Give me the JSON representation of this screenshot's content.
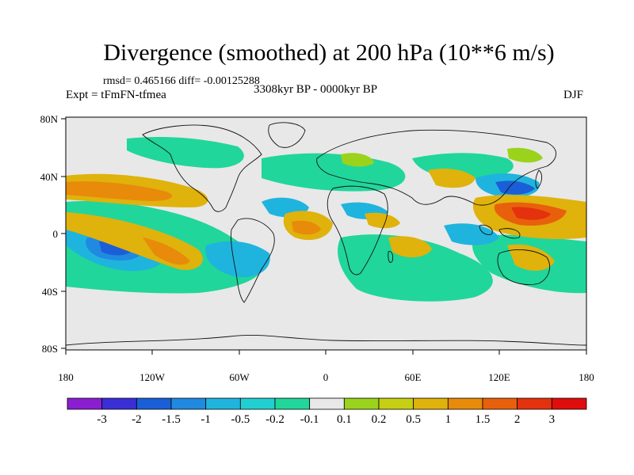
{
  "title": "Divergence (smoothed) at 200 hPa (10**6 m/s)",
  "stats": "rmsd= 0.465166 diff= -0.00125288",
  "experiment": "Expt = tFmFN-tfmea",
  "period": "3308kyr BP - 0000kyr BP",
  "season": "DJF",
  "lat_labels": [
    "80N",
    "40N",
    "0",
    "40S",
    "80S"
  ],
  "lon_labels": [
    "180",
    "120W",
    "60W",
    "0",
    "60E",
    "120E",
    "180"
  ],
  "colorbar": {
    "levels": [
      "-3",
      "-2",
      "-1.5",
      "-1",
      "-0.5",
      "-0.2",
      "-0.1",
      "0.1",
      "0.2",
      "0.5",
      "1",
      "1.5",
      "2",
      "3"
    ],
    "colors": [
      "#8c1ed1",
      "#3a2fd6",
      "#1a5fd8",
      "#1f8ae0",
      "#1fb4de",
      "#22cfd0",
      "#21d69a",
      "#e8e8e8",
      "#9bd21c",
      "#c6cf14",
      "#e0b20c",
      "#e88a0a",
      "#e8600c",
      "#e4310e",
      "#e00d0d"
    ]
  },
  "colors": {
    "land_background": "#e8e8e8",
    "coastline": "#111111"
  }
}
